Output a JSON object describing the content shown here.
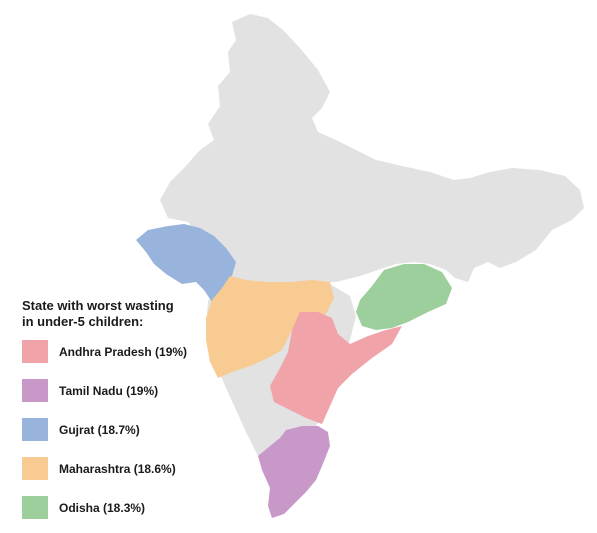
{
  "legend": {
    "title_line1": "State with worst wasting",
    "title_line2": "in under-5 children:",
    "items": [
      {
        "label": "Andhra Pradesh (19%)",
        "color": "#f0a3a8",
        "state": "Andhra Pradesh",
        "value": 19
      },
      {
        "label": "Tamil Nadu (19%)",
        "color": "#c898c8",
        "state": "Tamil Nadu",
        "value": 19
      },
      {
        "label": "Gujrat (18.7%)",
        "color": "#98b4dc",
        "state": "Gujrat",
        "value": 18.7
      },
      {
        "label": "Maharashtra (18.6%)",
        "color": "#f7cb92",
        "state": "Maharashtra",
        "value": 18.6
      },
      {
        "label": "Odisha (18.3%)",
        "color": "#9ccf9c",
        "state": "Odisha",
        "value": 18.3
      }
    ]
  },
  "colors": {
    "base_map": "#e2e2e2",
    "background": "#ffffff"
  }
}
